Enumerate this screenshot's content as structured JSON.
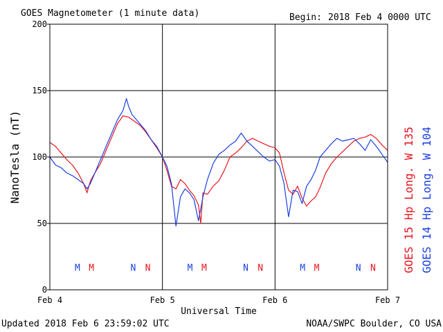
{
  "colors": {
    "goes15": "#e8141e",
    "goes14": "#1a3fe0",
    "grid": "#000000"
  },
  "header": {
    "title": "GOES Magnetometer (1 minute data)",
    "begin_label": "Begin:",
    "begin_value": "2018 Feb 4 0000 UTC"
  },
  "footer": {
    "updated": "Updated 2018 Feb  6 23:59:02 UTC",
    "credit": "NOAA/SWPC Boulder, CO USA"
  },
  "chart_data": {
    "type": "line",
    "title": "GOES Magnetometer (1 minute data)",
    "xlabel": "Universal Time",
    "ylabel": "NanoTesla (nT)",
    "ylim": [
      0,
      200
    ],
    "xlim_days": [
      0,
      3
    ],
    "yticks": [
      0,
      50,
      100,
      150,
      200
    ],
    "xticks": [
      {
        "day": 0,
        "label": "Feb 4"
      },
      {
        "day": 1,
        "label": "Feb 5"
      },
      {
        "day": 2,
        "label": "Feb 6"
      },
      {
        "day": 3,
        "label": "Feb 7"
      }
    ],
    "grid": true,
    "series": [
      {
        "name": "GOES 15 Hp  Long. W 135",
        "color": "#e8141e",
        "x": [
          0.0,
          0.05,
          0.1,
          0.15,
          0.2,
          0.25,
          0.3,
          0.33,
          0.36,
          0.4,
          0.45,
          0.5,
          0.55,
          0.6,
          0.65,
          0.7,
          0.75,
          0.8,
          0.85,
          0.9,
          0.95,
          1.0,
          1.04,
          1.08,
          1.12,
          1.16,
          1.2,
          1.24,
          1.28,
          1.32,
          1.34,
          1.36,
          1.4,
          1.45,
          1.5,
          1.55,
          1.6,
          1.65,
          1.7,
          1.75,
          1.8,
          1.85,
          1.9,
          1.95,
          2.0,
          2.04,
          2.08,
          2.12,
          2.16,
          2.2,
          2.24,
          2.28,
          2.32,
          2.36,
          2.4,
          2.45,
          2.5,
          2.55,
          2.6,
          2.65,
          2.7,
          2.75,
          2.8,
          2.85,
          2.9,
          2.95,
          3.0
        ],
        "values": [
          111,
          108,
          103,
          98,
          94,
          88,
          80,
          73,
          82,
          88,
          95,
          105,
          115,
          125,
          131,
          130,
          127,
          124,
          119,
          113,
          107,
          100,
          90,
          78,
          76,
          83,
          80,
          75,
          71,
          64,
          50,
          73,
          72,
          78,
          82,
          90,
          100,
          103,
          107,
          112,
          114,
          112,
          110,
          108,
          107,
          103,
          88,
          75,
          72,
          78,
          69,
          63,
          67,
          70,
          77,
          88,
          95,
          100,
          104,
          108,
          112,
          114,
          115,
          117,
          114,
          109,
          105
        ]
      },
      {
        "name": "GOES 14 Hp  Long. W 104",
        "color": "#1a3fe0",
        "x": [
          0.0,
          0.05,
          0.1,
          0.15,
          0.2,
          0.25,
          0.3,
          0.33,
          0.36,
          0.4,
          0.45,
          0.5,
          0.55,
          0.6,
          0.65,
          0.68,
          0.7,
          0.73,
          0.75,
          0.8,
          0.85,
          0.9,
          0.95,
          1.0,
          1.04,
          1.08,
          1.12,
          1.16,
          1.2,
          1.24,
          1.28,
          1.32,
          1.36,
          1.4,
          1.45,
          1.5,
          1.55,
          1.6,
          1.65,
          1.7,
          1.75,
          1.8,
          1.85,
          1.9,
          1.95,
          2.0,
          2.04,
          2.08,
          2.12,
          2.16,
          2.2,
          2.24,
          2.28,
          2.32,
          2.36,
          2.4,
          2.45,
          2.5,
          2.55,
          2.6,
          2.65,
          2.7,
          2.75,
          2.8,
          2.85,
          2.9,
          2.95,
          3.0
        ],
        "values": [
          100,
          94,
          92,
          88,
          86,
          83,
          80,
          76,
          80,
          88,
          98,
          108,
          118,
          128,
          135,
          144,
          138,
          132,
          130,
          125,
          120,
          113,
          108,
          100,
          93,
          80,
          48,
          70,
          76,
          73,
          68,
          52,
          70,
          83,
          95,
          102,
          105,
          109,
          112,
          118,
          112,
          108,
          104,
          100,
          97,
          98,
          93,
          80,
          55,
          75,
          74,
          65,
          78,
          83,
          90,
          100,
          105,
          110,
          114,
          112,
          113,
          114,
          110,
          105,
          113,
          108,
          102,
          96
        ]
      }
    ],
    "markers": [
      {
        "label": "M",
        "day": 0.245,
        "color": "#1a3fe0"
      },
      {
        "label": "M",
        "day": 0.37,
        "color": "#e8141e"
      },
      {
        "label": "N",
        "day": 0.74,
        "color": "#1a3fe0"
      },
      {
        "label": "N",
        "day": 0.87,
        "color": "#e8141e"
      },
      {
        "label": "M",
        "day": 1.245,
        "color": "#1a3fe0"
      },
      {
        "label": "M",
        "day": 1.37,
        "color": "#e8141e"
      },
      {
        "label": "N",
        "day": 1.74,
        "color": "#1a3fe0"
      },
      {
        "label": "N",
        "day": 1.87,
        "color": "#e8141e"
      },
      {
        "label": "M",
        "day": 2.245,
        "color": "#1a3fe0"
      },
      {
        "label": "M",
        "day": 2.37,
        "color": "#e8141e"
      },
      {
        "label": "N",
        "day": 2.74,
        "color": "#1a3fe0"
      },
      {
        "label": "N",
        "day": 2.87,
        "color": "#e8141e"
      }
    ],
    "marker_level": 17
  }
}
